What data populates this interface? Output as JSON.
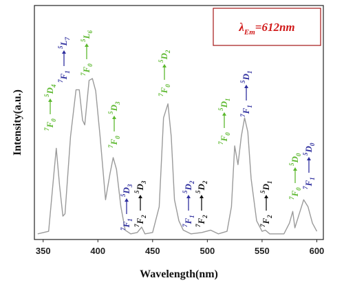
{
  "chart_data": {
    "type": "line",
    "x_label": "Wavelength(nm)",
    "y_label": "Intensity(a.u.)",
    "xlim": [
      342,
      606
    ],
    "ylim": [
      0,
      100
    ],
    "xticks": [
      350,
      400,
      450,
      500,
      550,
      600
    ],
    "color": "#9a9a9a",
    "x": [
      345,
      355,
      360,
      362,
      365,
      368,
      370,
      375,
      380,
      383,
      386,
      388,
      392,
      395,
      398,
      402,
      407,
      411,
      414,
      417,
      421,
      425,
      430,
      436,
      440,
      443,
      450,
      456,
      460,
      464,
      467,
      470,
      474,
      478,
      485,
      495,
      503,
      510,
      518,
      522,
      525,
      528,
      531,
      534,
      537,
      540,
      545,
      550,
      553,
      557,
      570,
      575,
      578,
      580,
      584,
      588,
      592,
      596,
      600
    ],
    "values": [
      2.4,
      3.5,
      29,
      39,
      23,
      10,
      11,
      44,
      64,
      64,
      51,
      49,
      68,
      68.8,
      63.5,
      44,
      17,
      28,
      35,
      30,
      14,
      4,
      2.4,
      3,
      5.3,
      2.4,
      3,
      14,
      52,
      58,
      44,
      17,
      8,
      4,
      2.4,
      3,
      4,
      2.4,
      3.5,
      14,
      40,
      32,
      44,
      52,
      46,
      26,
      8,
      3.5,
      4,
      2.4,
      2.4,
      7,
      12,
      5,
      11,
      17,
      14,
      7,
      3.5
    ],
    "legend": {
      "symbol": "λ",
      "subscript": "Em",
      "text": "=612nm",
      "color": "#d11a1a",
      "border": "#a31515"
    },
    "annotations": [
      {
        "lower_mult": "7",
        "lower": "F",
        "lower_j": "0",
        "upper_mult": "5",
        "upper": "D",
        "upper_j": "4",
        "color": "#5cb82e"
      },
      {
        "lower_mult": "7",
        "lower": "F",
        "lower_j": "1",
        "upper_mult": "5",
        "upper": "L",
        "upper_j": "7",
        "color": "#2e2e9e"
      },
      {
        "lower_mult": "7",
        "lower": "F",
        "lower_j": "0",
        "upper_mult": "5",
        "upper": "L",
        "upper_j": "6",
        "color": "#5cb82e"
      },
      {
        "lower_mult": "7",
        "lower": "F",
        "lower_j": "0",
        "upper_mult": "5",
        "upper": "D",
        "upper_j": "3",
        "color": "#5cb82e"
      },
      {
        "lower_mult": "7",
        "lower": "F",
        "lower_j": "1",
        "upper_mult": "5",
        "upper": "D",
        "upper_j": "3",
        "color": "#2e2e9e"
      },
      {
        "lower_mult": "7",
        "lower": "F",
        "lower_j": "2",
        "upper_mult": "5",
        "upper": "D",
        "upper_j": "3",
        "color": "#111111"
      },
      {
        "lower_mult": "7",
        "lower": "F",
        "lower_j": "0",
        "upper_mult": "5",
        "upper": "D",
        "upper_j": "2",
        "color": "#5cb82e"
      },
      {
        "lower_mult": "7",
        "lower": "F",
        "lower_j": "1",
        "upper_mult": "5",
        "upper": "D",
        "upper_j": "2",
        "color": "#2e2e9e"
      },
      {
        "lower_mult": "7",
        "lower": "F",
        "lower_j": "2",
        "upper_mult": "5",
        "upper": "D",
        "upper_j": "2",
        "color": "#111111"
      },
      {
        "lower_mult": "7",
        "lower": "F",
        "lower_j": "0",
        "upper_mult": "5",
        "upper": "D",
        "upper_j": "1",
        "color": "#5cb82e"
      },
      {
        "lower_mult": "7",
        "lower": "F",
        "lower_j": "1",
        "upper_mult": "5",
        "upper": "D",
        "upper_j": "1",
        "color": "#2e2e9e"
      },
      {
        "lower_mult": "7",
        "lower": "F",
        "lower_j": "2",
        "upper_mult": "5",
        "upper": "D",
        "upper_j": "1",
        "color": "#111111"
      },
      {
        "lower_mult": "7",
        "lower": "F",
        "lower_j": "0",
        "upper_mult": "5",
        "upper": "D",
        "upper_j": "0",
        "color": "#5cb82e"
      },
      {
        "lower_mult": "7",
        "lower": "F",
        "lower_j": "1",
        "upper_mult": "5",
        "upper": "D",
        "upper_j": "0",
        "color": "#2e2e9e"
      }
    ]
  }
}
